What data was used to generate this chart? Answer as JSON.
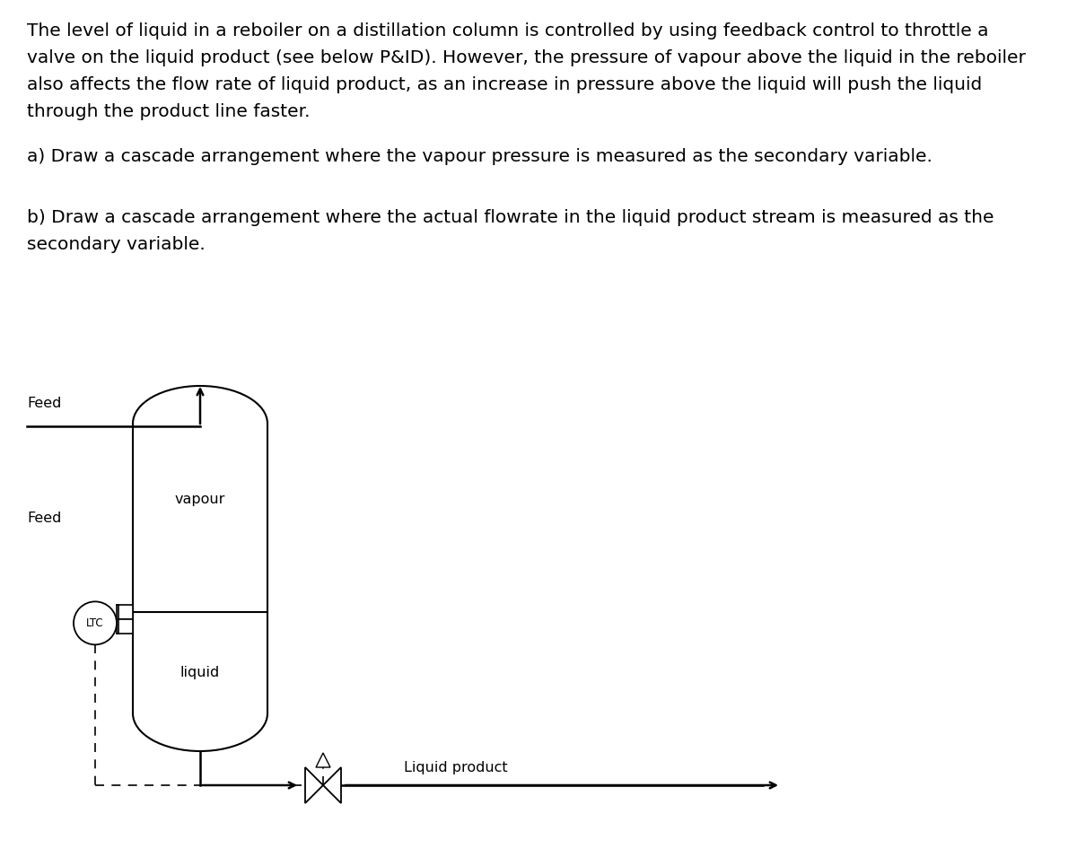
{
  "line1": "The level of liquid in a reboiler on a distillation column is controlled by using feedback control to throttle a",
  "line2": "valve on the liquid product (see below P&ID). However, the pressure of vapour above the liquid in the reboiler",
  "line3": "also affects the flow rate of liquid product, as an increase in pressure above the liquid will push the liquid",
  "line4": "through the product line faster.",
  "text_a": "a) Draw a cascade arrangement where the vapour pressure is measured as the secondary variable.",
  "text_b1": "b) Draw a cascade arrangement where the actual flowrate in the liquid product stream is measured as the",
  "text_b2": "secondary variable.",
  "feed_label": "Feed",
  "vapour_label": "vapour",
  "liquid_label": "liquid",
  "liquid_product_label": "Liquid product",
  "ltc_label": "LTC",
  "bg_color": "#ffffff",
  "line_color": "#000000",
  "text_color": "#000000",
  "font_size_body": 14.5,
  "font_size_diagram": 11.5,
  "font_size_ltc": 8.5
}
